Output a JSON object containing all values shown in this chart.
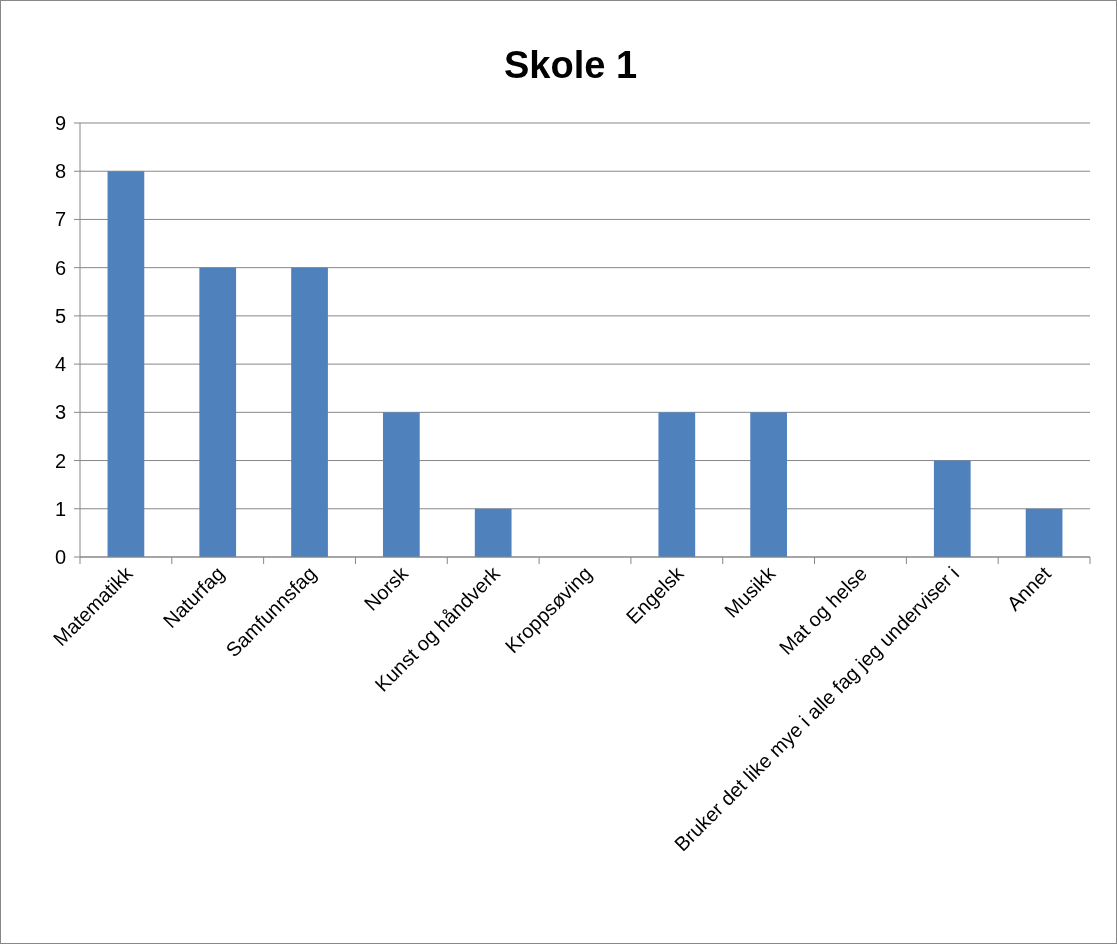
{
  "chart_data": {
    "type": "bar",
    "title": "Skole 1",
    "categories": [
      "Matematikk",
      "Naturfag",
      "Samfunnsfag",
      "Norsk",
      "Kunst og håndverk",
      "Kroppsøving",
      "Engelsk",
      "Musikk",
      "Mat og helse",
      "Bruker det like mye i alle fag jeg underviser i",
      "Annet"
    ],
    "values": [
      8,
      6,
      6,
      3,
      1,
      0,
      3,
      3,
      0,
      2,
      1
    ],
    "color": "#4f81bd",
    "ylim": [
      0,
      9
    ],
    "yticks": [
      0,
      1,
      2,
      3,
      4,
      5,
      6,
      7,
      8,
      9
    ],
    "grid": true
  }
}
